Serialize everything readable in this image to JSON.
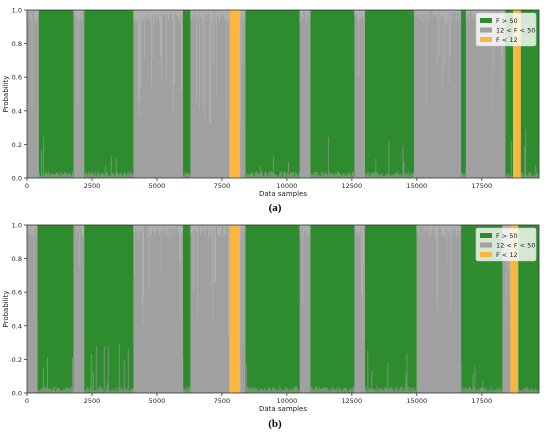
{
  "chart_data": [
    {
      "type": "area",
      "panel_label": "a",
      "xlabel": "Data samples",
      "ylabel": "Probability",
      "xlim": [
        0,
        19700
      ],
      "ylim": [
        0,
        1.0
      ],
      "xticks": [
        0,
        2500,
        5000,
        7500,
        10000,
        12500,
        15000,
        17500
      ],
      "yticks": [
        0.0,
        0.2,
        0.4,
        0.6,
        0.8,
        1.0
      ],
      "legend_position": "top-right",
      "series": [
        {
          "name": "F > 50",
          "color": "#2e8b2e"
        },
        {
          "name": "12 < F < 50",
          "color": "#a0a0a0"
        },
        {
          "name": "F < 12",
          "color": "#f9b73f"
        }
      ],
      "segments": [
        {
          "start": 0,
          "end": 450,
          "class": "12 < F < 50"
        },
        {
          "start": 450,
          "end": 1800,
          "class": "F > 50"
        },
        {
          "start": 1800,
          "end": 2200,
          "class": "12 < F < 50"
        },
        {
          "start": 2200,
          "end": 4100,
          "class": "F > 50"
        },
        {
          "start": 4100,
          "end": 6000,
          "class": "12 < F < 50"
        },
        {
          "start": 6000,
          "end": 6300,
          "class": "F > 50"
        },
        {
          "start": 6300,
          "end": 7800,
          "class": "12 < F < 50"
        },
        {
          "start": 7800,
          "end": 8200,
          "class": "F < 12"
        },
        {
          "start": 8200,
          "end": 8400,
          "class": "12 < F < 50"
        },
        {
          "start": 8400,
          "end": 10500,
          "class": "F > 50"
        },
        {
          "start": 10500,
          "end": 10900,
          "class": "12 < F < 50"
        },
        {
          "start": 10900,
          "end": 12600,
          "class": "F > 50"
        },
        {
          "start": 12600,
          "end": 13000,
          "class": "12 < F < 50"
        },
        {
          "start": 13000,
          "end": 14900,
          "class": "F > 50"
        },
        {
          "start": 14900,
          "end": 16700,
          "class": "12 < F < 50"
        },
        {
          "start": 16700,
          "end": 16900,
          "class": "F > 50"
        },
        {
          "start": 16900,
          "end": 18400,
          "class": "12 < F < 50"
        },
        {
          "start": 18400,
          "end": 18700,
          "class": "F > 50"
        },
        {
          "start": 18700,
          "end": 19000,
          "class": "F < 12"
        },
        {
          "start": 19000,
          "end": 19700,
          "class": "F > 50"
        }
      ]
    },
    {
      "type": "area",
      "panel_label": "b",
      "xlabel": "Data samples",
      "ylabel": "Probability",
      "xlim": [
        0,
        19700
      ],
      "ylim": [
        0,
        1.0
      ],
      "xticks": [
        0,
        2500,
        5000,
        7500,
        10000,
        12500,
        15000,
        17500
      ],
      "yticks": [
        0.0,
        0.2,
        0.4,
        0.6,
        0.8,
        1.0
      ],
      "legend_position": "top-right",
      "series": [
        {
          "name": "F > 50",
          "color": "#2e8b2e"
        },
        {
          "name": "12 < F < 50",
          "color": "#a0a0a0"
        },
        {
          "name": "F < 12",
          "color": "#f9b73f"
        }
      ],
      "segments": [
        {
          "start": 0,
          "end": 400,
          "class": "12 < F < 50"
        },
        {
          "start": 400,
          "end": 1800,
          "class": "F > 50"
        },
        {
          "start": 1800,
          "end": 2200,
          "class": "12 < F < 50"
        },
        {
          "start": 2200,
          "end": 4100,
          "class": "F > 50"
        },
        {
          "start": 4100,
          "end": 6000,
          "class": "12 < F < 50"
        },
        {
          "start": 6000,
          "end": 6300,
          "class": "F > 50"
        },
        {
          "start": 6300,
          "end": 7800,
          "class": "12 < F < 50"
        },
        {
          "start": 7800,
          "end": 8200,
          "class": "F < 12"
        },
        {
          "start": 8200,
          "end": 8400,
          "class": "12 < F < 50"
        },
        {
          "start": 8400,
          "end": 10500,
          "class": "F > 50"
        },
        {
          "start": 10500,
          "end": 10900,
          "class": "12 < F < 50"
        },
        {
          "start": 10900,
          "end": 12600,
          "class": "F > 50"
        },
        {
          "start": 12600,
          "end": 13000,
          "class": "12 < F < 50"
        },
        {
          "start": 13000,
          "end": 15000,
          "class": "F > 50"
        },
        {
          "start": 15000,
          "end": 16700,
          "class": "12 < F < 50"
        },
        {
          "start": 16700,
          "end": 18300,
          "class": "F > 50"
        },
        {
          "start": 18300,
          "end": 18600,
          "class": "12 < F < 50"
        },
        {
          "start": 18600,
          "end": 18900,
          "class": "F < 12"
        },
        {
          "start": 18900,
          "end": 19700,
          "class": "F > 50"
        }
      ]
    }
  ],
  "captions": [
    "(a)",
    "(b)"
  ]
}
